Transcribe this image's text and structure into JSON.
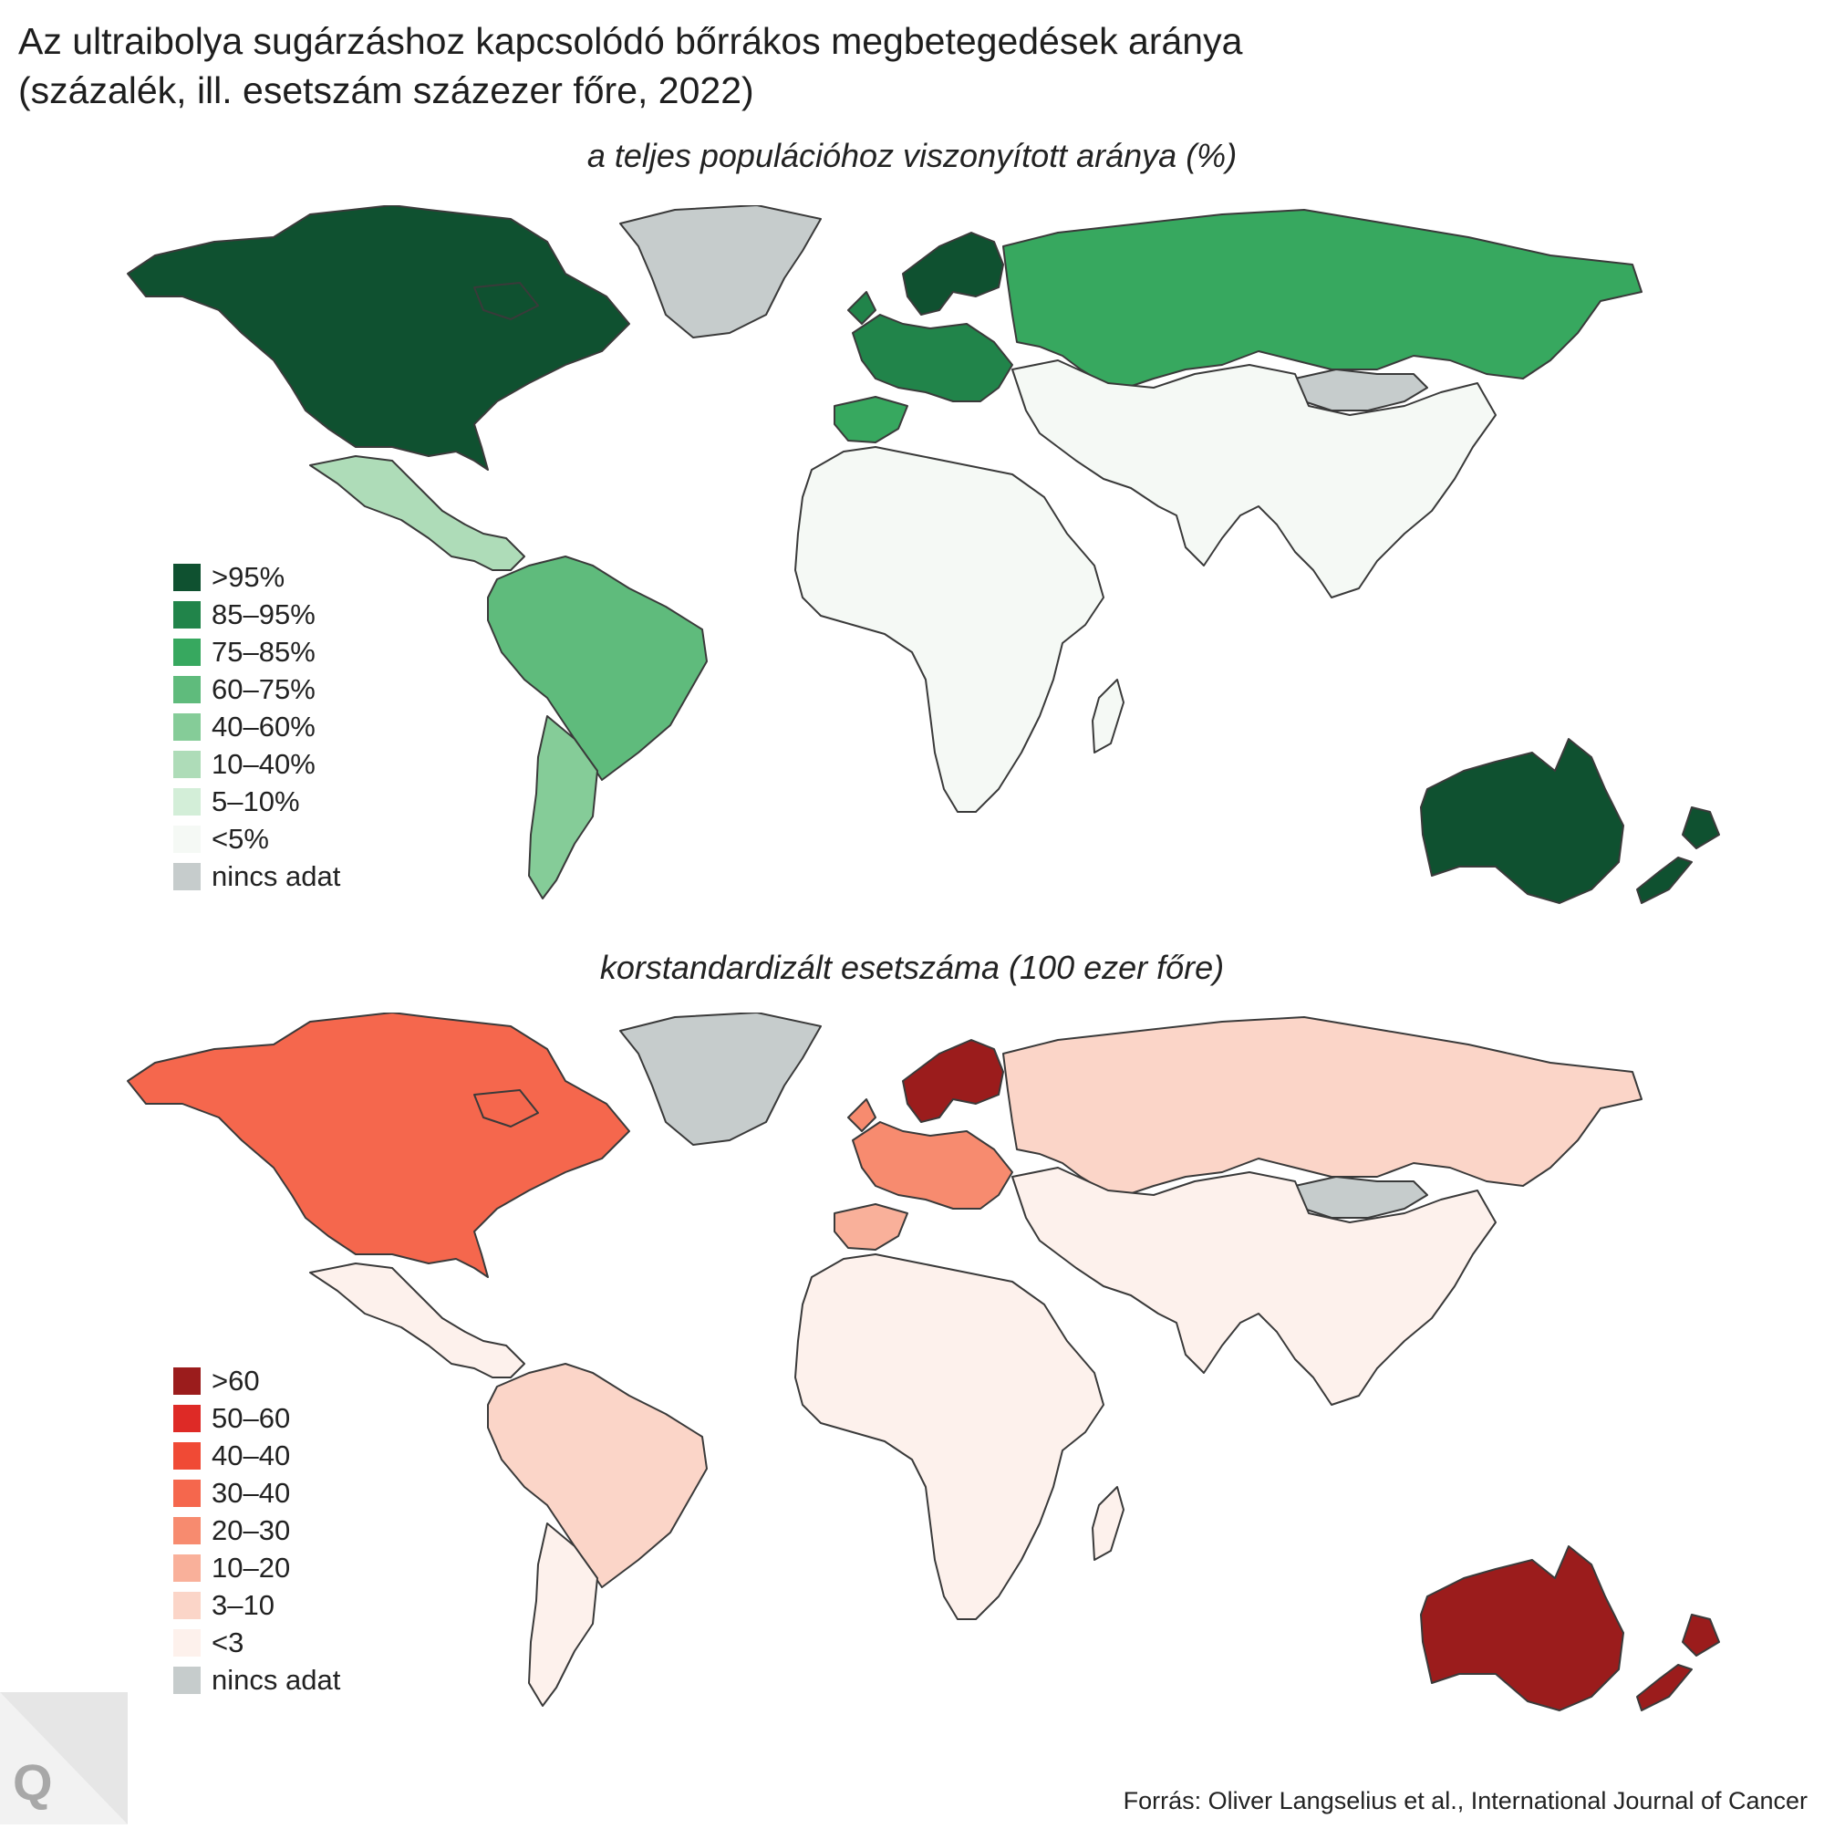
{
  "title": {
    "line1": "Az ultraibolya sugárzáshoz kapcsolódó bőrrákos megbetegedések aránya",
    "line2": "(százalék, ill. esetszám százezer főre, 2022)"
  },
  "map_top": {
    "subtitle": "a teljes populációhoz viszonyított aránya (%)",
    "legend": [
      {
        "label": ">95%",
        "color": "#0f5130"
      },
      {
        "label": "85–95%",
        "color": "#21844a"
      },
      {
        "label": "75–85%",
        "color": "#37a85f"
      },
      {
        "label": "60–75%",
        "color": "#5fbb7c"
      },
      {
        "label": "40–60%",
        "color": "#85cc98"
      },
      {
        "label": "10–40%",
        "color": "#aedcb8"
      },
      {
        "label": "5–10%",
        "color": "#d3eed8"
      },
      {
        "label": "<5%",
        "color": "#f5f9f5"
      },
      {
        "label": "nincs adat",
        "color": "#c6cccc"
      }
    ]
  },
  "map_bottom": {
    "subtitle": "korstandardizált esetszáma (100 ezer főre)",
    "legend": [
      {
        "label": ">60",
        "color": "#9b1c1c"
      },
      {
        "label": "50–60",
        "color": "#de2a26"
      },
      {
        "label": "40–40",
        "color": "#f04a35"
      },
      {
        "label": "30–40",
        "color": "#f5674d"
      },
      {
        "label": "20–30",
        "color": "#f78b6f"
      },
      {
        "label": "10–20",
        "color": "#f9b09a"
      },
      {
        "label": "3–10",
        "color": "#fbd5c8"
      },
      {
        "label": "<3",
        "color": "#fdf1ec"
      },
      {
        "label": "nincs adat",
        "color": "#c6cccc"
      }
    ]
  },
  "regions": [
    {
      "name": "north-america",
      "top_class": 0,
      "bottom_class": 3
    },
    {
      "name": "greenland",
      "top_class": 8,
      "bottom_class": 8
    },
    {
      "name": "mexico-central-america",
      "top_class": 5,
      "bottom_class": 7
    },
    {
      "name": "south-america",
      "top_class": 3,
      "bottom_class": 6
    },
    {
      "name": "south-america-south",
      "top_class": 4,
      "bottom_class": 7
    },
    {
      "name": "western-europe",
      "top_class": 1,
      "bottom_class": 4
    },
    {
      "name": "scandinavia",
      "top_class": 0,
      "bottom_class": 0
    },
    {
      "name": "iberia",
      "top_class": 2,
      "bottom_class": 5
    },
    {
      "name": "russia",
      "top_class": 2,
      "bottom_class": 6
    },
    {
      "name": "mongolia",
      "top_class": 8,
      "bottom_class": 8
    },
    {
      "name": "asia",
      "top_class": 7,
      "bottom_class": 7
    },
    {
      "name": "africa",
      "top_class": 7,
      "bottom_class": 7
    },
    {
      "name": "australia",
      "top_class": 0,
      "bottom_class": 0
    },
    {
      "name": "new-zealand",
      "top_class": 0,
      "bottom_class": 0
    }
  ],
  "source": "Forrás: Oliver Langselius et al., International Journal of Cancer",
  "logo": "Q"
}
